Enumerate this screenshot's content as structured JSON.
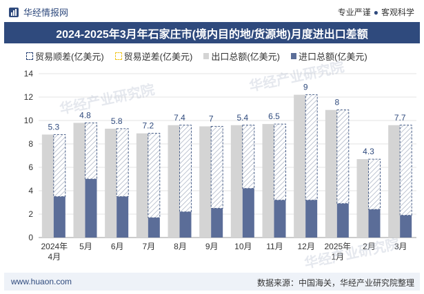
{
  "header": {
    "brand": "华经情报网",
    "slogan_left": "专业严谨",
    "slogan_right": "客观科学"
  },
  "title": "2024-2025年3月年石家庄市(境内目的地/货源地)月度进出口差额",
  "legend": [
    {
      "label": "贸易顺差(亿美元)",
      "style": "surplus"
    },
    {
      "label": "贸易逆差(亿美元)",
      "style": "deficit"
    },
    {
      "label": "出口总额(亿美元)",
      "style": "export"
    },
    {
      "label": "进口总额(亿美元)",
      "style": "import"
    }
  ],
  "footer": {
    "url": "www.huaon.com",
    "source": "数据来源：中国海关，华经产业研究院整理"
  },
  "watermark": "华经产业研究院",
  "colors": {
    "brand": "#2f4a7d",
    "export": "#d4d4d4",
    "import": "#5b6d98",
    "surplus_stroke": "#1f3a6e",
    "deficit_stroke": "#f0c419"
  },
  "chart_data": {
    "type": "bar",
    "categories": [
      "2024年\n4月",
      "5月",
      "6月",
      "7月",
      "8月",
      "9月",
      "10月",
      "11月",
      "12月",
      "2025年\n1月",
      "2月",
      "3月"
    ],
    "series": [
      {
        "name": "出口总额(亿美元)",
        "values": [
          8.8,
          9.8,
          9.3,
          8.9,
          9.6,
          9.5,
          9.6,
          9.7,
          12.2,
          10.9,
          6.7,
          9.6
        ]
      },
      {
        "name": "进口总额(亿美元)",
        "values": [
          3.5,
          5.0,
          3.5,
          1.7,
          2.2,
          2.5,
          4.2,
          3.2,
          3.2,
          2.9,
          2.4,
          1.9
        ]
      },
      {
        "name": "贸易顺差(亿美元)",
        "values": [
          5.3,
          4.8,
          5.8,
          7.2,
          7.4,
          7,
          5.4,
          6.5,
          9,
          8,
          4.3,
          7.7
        ]
      }
    ],
    "surplus_labels": [
      "5.3",
      "4.8",
      "5.8",
      "7.2",
      "7.4",
      "7",
      "5.4",
      "6.5",
      "9",
      "8",
      "4.3",
      "7.7"
    ],
    "ylim": [
      0,
      14
    ],
    "yticks": [
      0,
      2,
      4,
      6,
      8,
      10,
      12,
      14
    ],
    "grid": true,
    "legend_position": "top"
  }
}
